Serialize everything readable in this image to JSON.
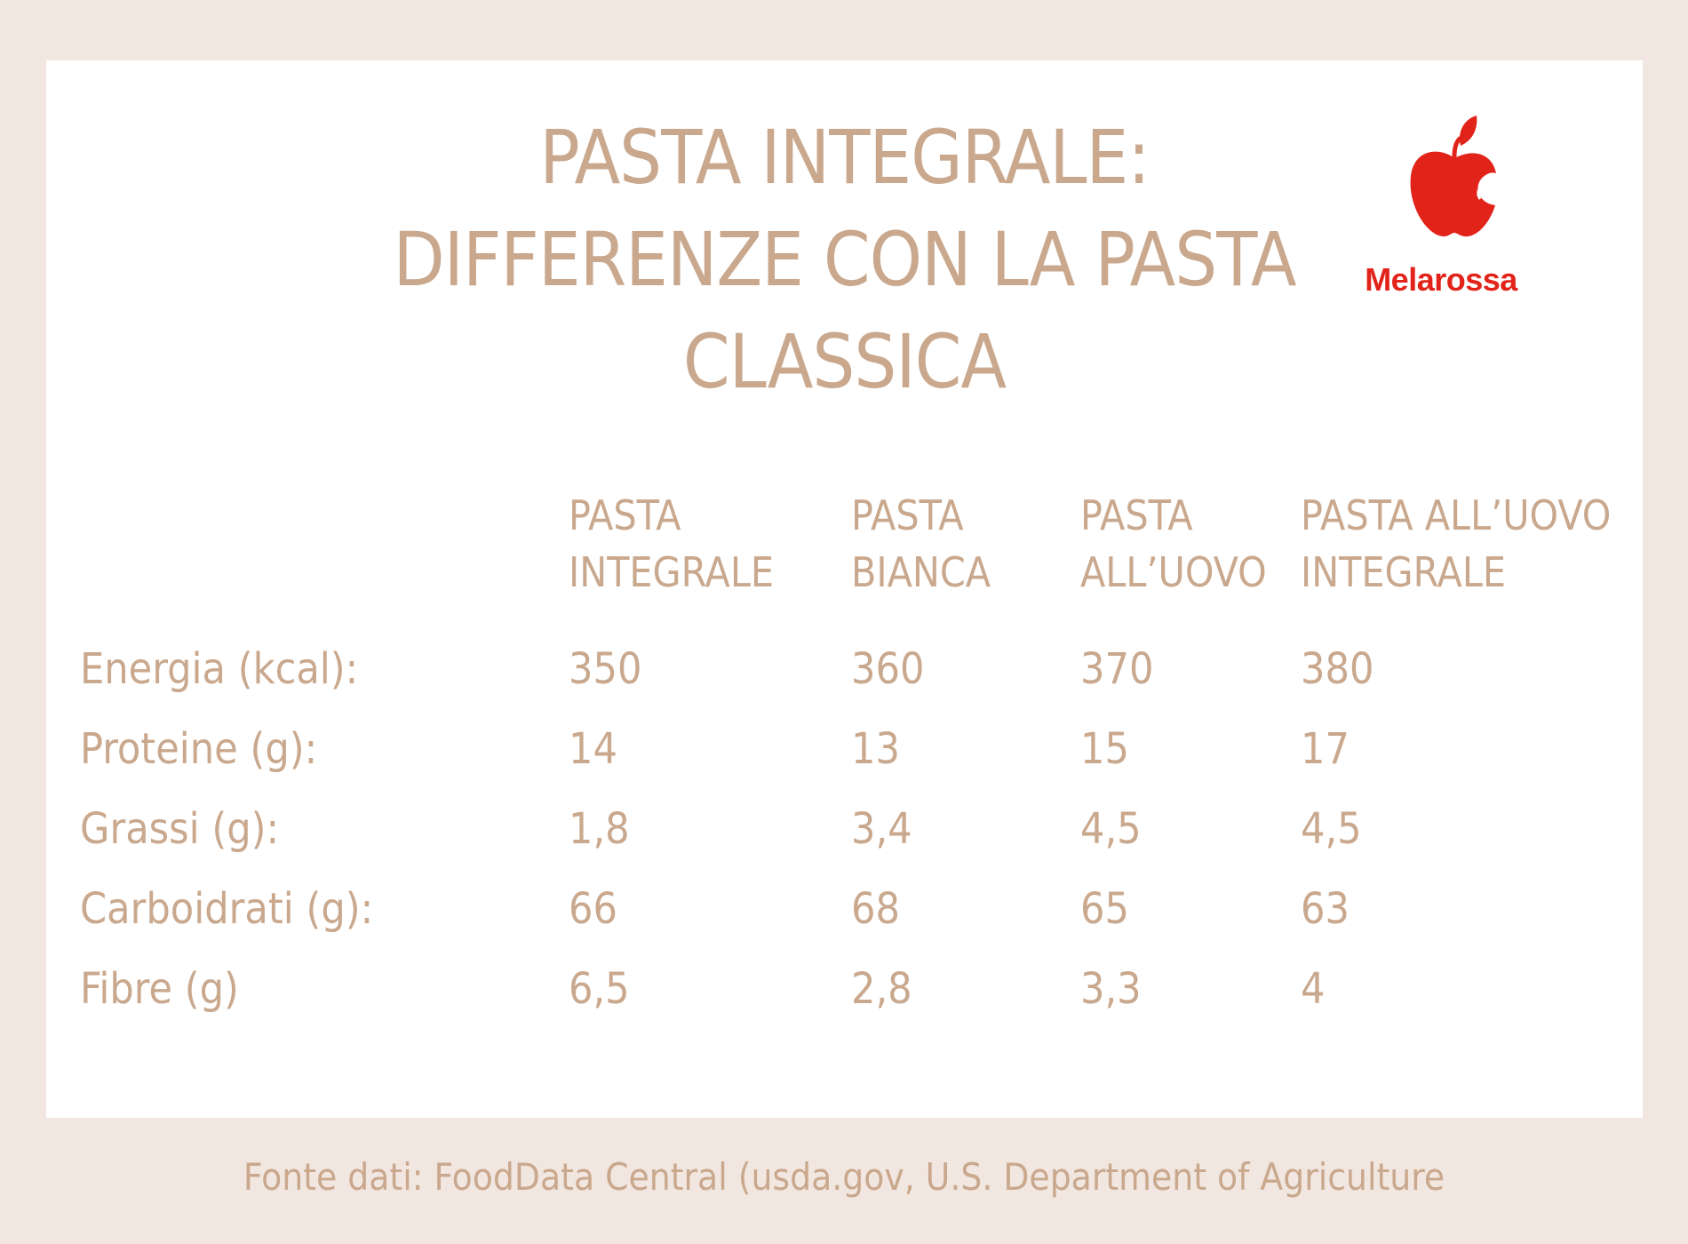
{
  "title": {
    "line1": "PASTA INTEGRALE:",
    "line2": "DIFFERENZE CON LA PASTA",
    "line3": "CLASSICA"
  },
  "logo": {
    "text": "Melarossa",
    "icon": "apple-icon",
    "color": "#e2231a"
  },
  "table": {
    "headers": [
      [
        "PASTA",
        "INTEGRALE"
      ],
      [
        "PASTA",
        "BIANCA"
      ],
      [
        "PASTA",
        "ALL’UOVO"
      ],
      [
        "PASTA ALL’UOVO",
        "INTEGRALE"
      ]
    ],
    "rows": [
      {
        "label": "Energia (kcal):",
        "values": [
          "350",
          "360",
          "370",
          "380"
        ]
      },
      {
        "label": "Proteine (g):",
        "values": [
          "14",
          "13",
          "15",
          "17"
        ]
      },
      {
        "label": "Grassi (g):",
        "values": [
          "1,8",
          "3,4",
          "4,5",
          "4,5"
        ]
      },
      {
        "label": "Carboidrati (g):",
        "values": [
          "66",
          "68",
          "65",
          "63"
        ]
      },
      {
        "label": "Fibre (g)",
        "values": [
          "6,5",
          "2,8",
          "3,3",
          "4"
        ]
      }
    ]
  },
  "source": "Fonte dati: FoodData Central (usda.gov, U.S. Department of Agriculture",
  "colors": {
    "background": "#f2e7e0",
    "card": "#ffffff",
    "text": "#c9a88d"
  }
}
